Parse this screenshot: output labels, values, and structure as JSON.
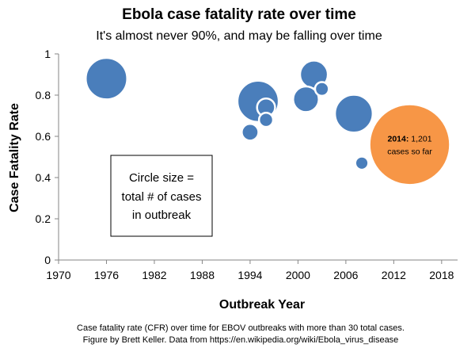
{
  "chart_data": {
    "type": "scatter",
    "title": "Ebola case fatality rate over time",
    "subtitle": "It's almost never 90%, and may be falling over time",
    "xlabel": "Outbreak Year",
    "ylabel": "Case Fatality Rate",
    "xlim": [
      1970,
      2020
    ],
    "ylim": [
      0,
      1
    ],
    "xticks": [
      "1970",
      "1976",
      "1982",
      "1988",
      "1994",
      "2000",
      "2006",
      "2012",
      "2018"
    ],
    "yticks": [
      "0",
      "0.2",
      "0.4",
      "0.6",
      "0.8",
      "1"
    ],
    "grid": false,
    "bubble_color": "#4a7ebb",
    "highlight_color": "#f79646",
    "points": [
      {
        "year": 1976,
        "cfr": 0.88,
        "cases": 318
      },
      {
        "year": 1995,
        "cfr": 0.77,
        "cases": 315
      },
      {
        "year": 1996,
        "cfr": 0.74,
        "cases": 60
      },
      {
        "year": 1996,
        "cfr": 0.68,
        "cases": 37
      },
      {
        "year": 1994,
        "cfr": 0.62,
        "cases": 52
      },
      {
        "year": 2001,
        "cfr": 0.78,
        "cases": 122
      },
      {
        "year": 2002,
        "cfr": 0.9,
        "cases": 143
      },
      {
        "year": 2003,
        "cfr": 0.83,
        "cases": 35
      },
      {
        "year": 2007,
        "cfr": 0.71,
        "cases": 264
      },
      {
        "year": 2008,
        "cfr": 0.47,
        "cases": 32
      }
    ],
    "highlight_point": {
      "year": 2014,
      "cfr": 0.56,
      "cases": 1201,
      "label_bold": "2014:",
      "label_rest": " 1,201",
      "label_line2": "cases so far"
    },
    "note_lines": [
      "Circle size =",
      "total # of cases",
      "in outbreak"
    ],
    "caption_lines": [
      "Case fatality rate (CFR) over time for EBOV outbreaks with more than 30 total cases.",
      "Figure by Brett Keller. Data from https://en.wikipedia.org/wiki/Ebola_virus_disease"
    ]
  }
}
